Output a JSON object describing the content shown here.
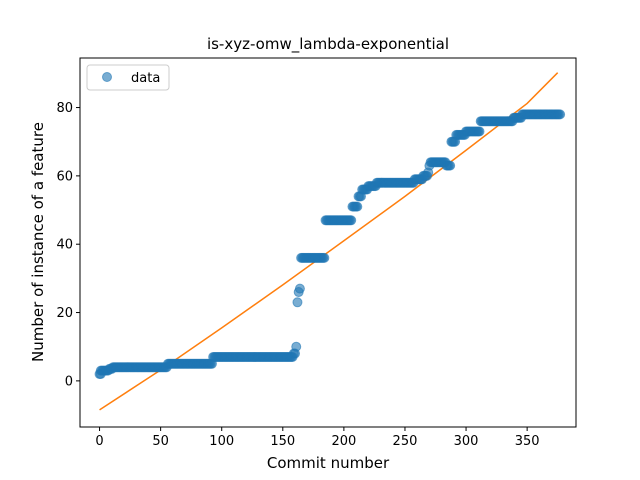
{
  "chart_data": {
    "type": "scatter",
    "title": "is-xyz-omw_lambda-exponential",
    "xlabel": "Commit number",
    "ylabel": "Number of instance of a feature",
    "xlim": [
      -16,
      390
    ],
    "ylim": [
      -13.5,
      94.5
    ],
    "xticks": [
      0,
      50,
      100,
      150,
      200,
      250,
      300,
      350
    ],
    "yticks": [
      0,
      20,
      40,
      60,
      80
    ],
    "grid": false,
    "legend_position": "top-left",
    "series": [
      {
        "name": "data",
        "kind": "scatter",
        "color": "#1f77b4",
        "alpha": 0.6,
        "runs": [
          [
            0,
            1,
            2
          ],
          [
            1,
            2,
            3
          ],
          [
            3,
            7,
            3
          ],
          [
            8,
            10,
            3.5
          ],
          [
            11,
            55,
            4
          ],
          [
            56,
            92,
            5
          ],
          [
            93,
            158,
            7
          ],
          [
            159,
            160,
            8
          ],
          [
            161,
            161,
            10
          ],
          [
            162,
            162,
            23
          ],
          [
            163,
            163,
            26
          ],
          [
            164,
            164,
            27
          ],
          [
            165,
            184,
            36
          ],
          [
            185,
            206,
            47
          ],
          [
            207,
            211,
            51
          ],
          [
            212,
            214,
            54
          ],
          [
            215,
            219,
            56
          ],
          [
            220,
            226,
            57
          ],
          [
            227,
            257,
            58
          ],
          [
            258,
            264,
            59
          ],
          [
            265,
            268,
            60
          ],
          [
            269,
            269,
            61
          ],
          [
            270,
            270,
            63
          ],
          [
            271,
            283,
            64
          ],
          [
            284,
            287,
            63
          ],
          [
            288,
            291,
            70
          ],
          [
            292,
            299,
            72
          ],
          [
            300,
            311,
            73
          ],
          [
            312,
            338,
            76
          ],
          [
            339,
            345,
            77
          ],
          [
            346,
            377,
            78
          ]
        ]
      },
      {
        "name": "",
        "kind": "line",
        "color": "#ff7f0e",
        "x": [
          0,
          50,
          100,
          150,
          200,
          250,
          300,
          350,
          375
        ],
        "y": [
          -8.5,
          3.2,
          15.5,
          28.1,
          41.0,
          54.0,
          67.5,
          81.2,
          90.2
        ]
      }
    ]
  }
}
